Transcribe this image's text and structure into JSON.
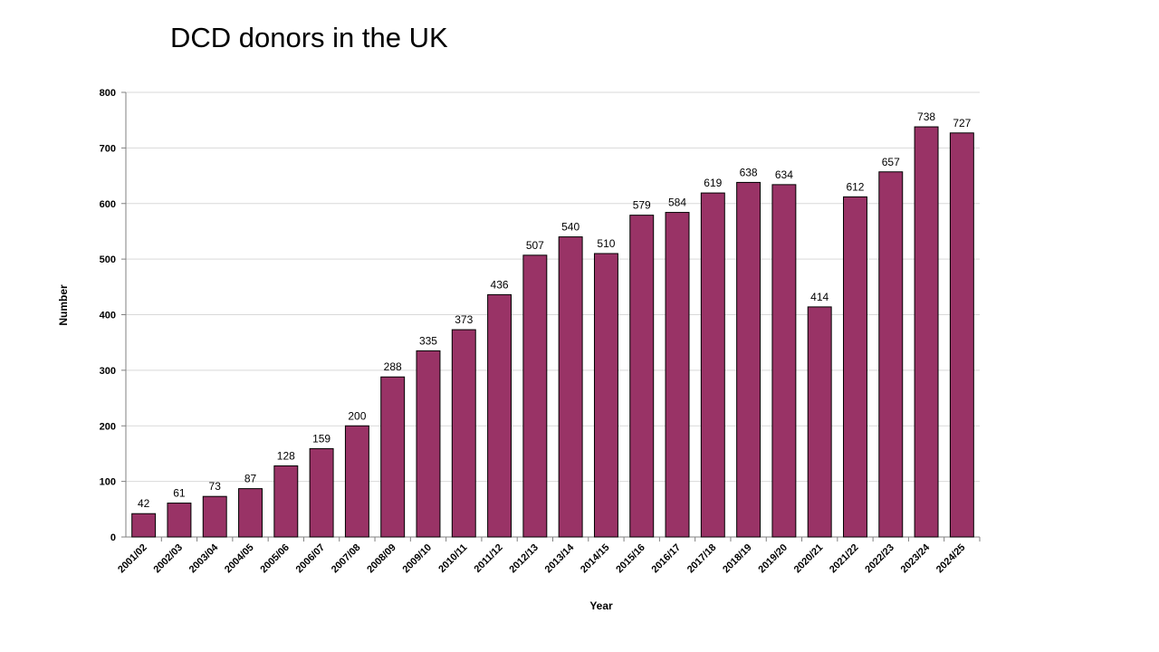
{
  "chart_data": {
    "type": "bar",
    "title": "DCD donors in the UK",
    "xlabel": "Year",
    "ylabel": "Number",
    "ylim": [
      0,
      800
    ],
    "yticks": [
      0,
      100,
      200,
      300,
      400,
      500,
      600,
      700,
      800
    ],
    "grid": true,
    "legend": "none",
    "bar_color": "#993366",
    "categories": [
      "2001/02",
      "2002/03",
      "2003/04",
      "2004/05",
      "2005/06",
      "2006/07",
      "2007/08",
      "2008/09",
      "2009/10",
      "2010/11",
      "2011/12",
      "2012/13",
      "2013/14",
      "2014/15",
      "2015/16",
      "2016/17",
      "2017/18",
      "2018/19",
      "2019/20",
      "2020/21",
      "2021/22",
      "2022/23",
      "2023/24",
      "2024/25"
    ],
    "values": [
      42,
      61,
      73,
      87,
      128,
      159,
      200,
      288,
      335,
      373,
      436,
      507,
      540,
      510,
      579,
      584,
      619,
      638,
      634,
      414,
      612,
      657,
      738,
      727
    ]
  }
}
